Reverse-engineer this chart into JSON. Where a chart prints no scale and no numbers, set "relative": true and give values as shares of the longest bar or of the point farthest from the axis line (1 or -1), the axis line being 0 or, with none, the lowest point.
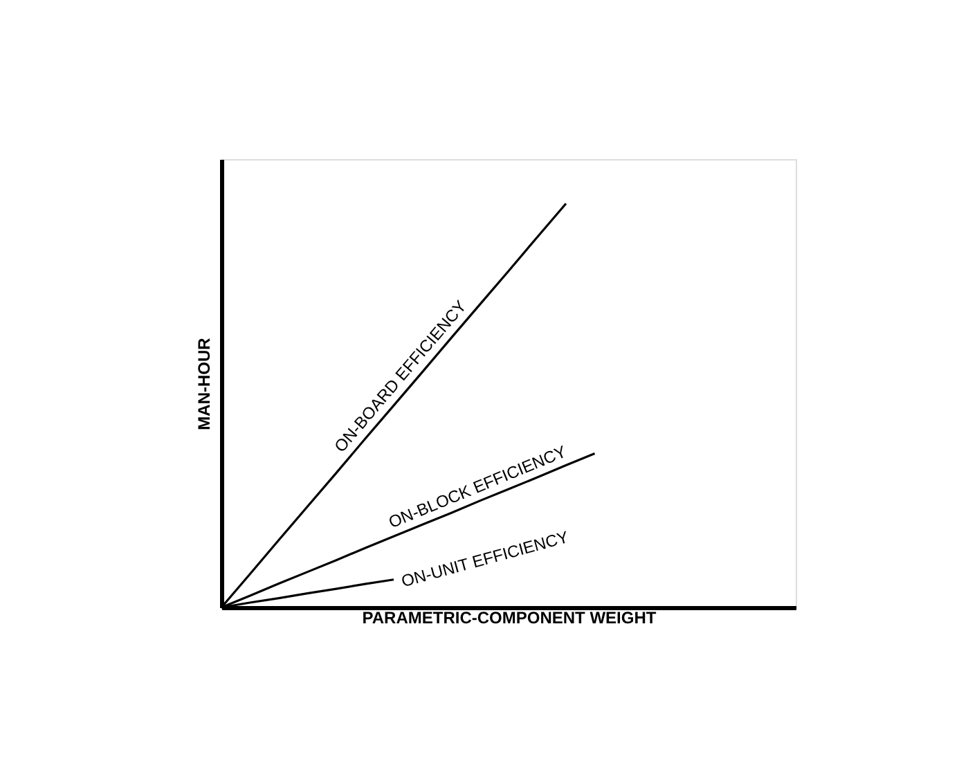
{
  "chart_data": {
    "type": "line",
    "relative": true,
    "xlabel": "PARAMETRIC-COMPONENT WEIGHT",
    "ylabel": "MAN-HOUR",
    "tick_labels": false,
    "grid": false,
    "legend": false,
    "line_style": "solid",
    "marker": "none",
    "categories": [
      null,
      null,
      null,
      null,
      null,
      null,
      null,
      null,
      null,
      null,
      null,
      null,
      null,
      null,
      null,
      null,
      null,
      null,
      null,
      null,
      null
    ],
    "series": [
      {
        "name": "ON-BOARD EFFICIENCY",
        "color": "#000000",
        "values": [
          0,
          0.083,
          0.167,
          0.25,
          0.333,
          0.417,
          0.5,
          0.583,
          0.667,
          0.75,
          0.833,
          0.917,
          1,
          null,
          null,
          null,
          null,
          null,
          null,
          null,
          null
        ]
      },
      {
        "name": "ON-BLOCK EFFICIENCY",
        "color": "#000000",
        "values": [
          0,
          0.029,
          0.059,
          0.088,
          0.117,
          0.147,
          0.176,
          0.205,
          0.234,
          0.264,
          0.293,
          0.322,
          0.352,
          0.381,
          null,
          null,
          null,
          null,
          null,
          null,
          null
        ]
      },
      {
        "name": "ON-UNIT EFFICIENCY",
        "color": "#000000",
        "values": [
          0,
          0.012,
          0.023,
          0.035,
          0.046,
          0.058,
          0.069,
          null,
          null,
          null,
          null,
          null,
          null,
          null,
          null,
          null,
          null,
          null,
          null,
          null,
          null
        ]
      }
    ]
  }
}
